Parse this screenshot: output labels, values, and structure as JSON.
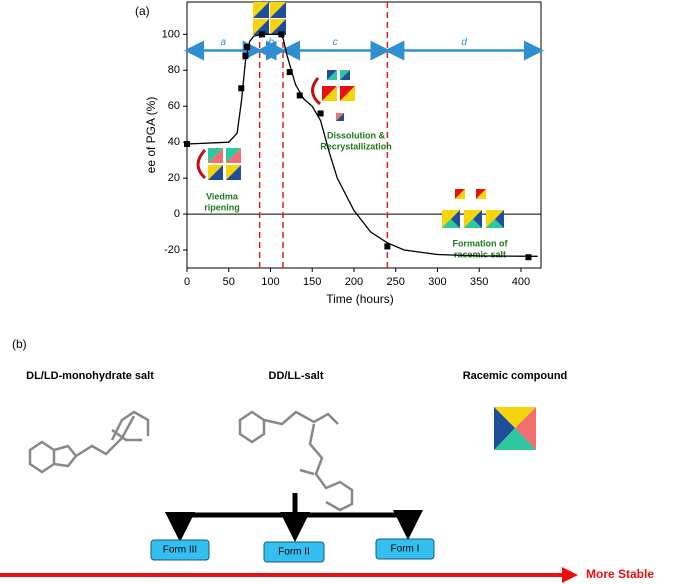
{
  "chart_data": {
    "type": "scatter",
    "panel_label": "(a)",
    "x_label": "Time (hours)",
    "y_label": "ee of PGA (%)",
    "xlim": [
      0,
      424
    ],
    "ylim": [
      -30,
      118
    ],
    "xticks": [
      0,
      50,
      100,
      150,
      200,
      250,
      300,
      350,
      400
    ],
    "yticks": [
      -20,
      0,
      20,
      40,
      60,
      80,
      100
    ],
    "series": [
      {
        "type": "scatter",
        "color": "#000000",
        "x": [
          0,
          65,
          70,
          72,
          90,
          113,
          123,
          135,
          160,
          240,
          409
        ],
        "values": [
          39,
          70,
          88,
          93,
          100,
          100,
          79,
          66,
          56,
          -18,
          -24
        ]
      },
      {
        "type": "line",
        "color": "#000000",
        "x": [
          0,
          50,
          60,
          65,
          70,
          75,
          80,
          90,
          100,
          110,
          115,
          120,
          130,
          140,
          150,
          160,
          170,
          180,
          200,
          220,
          240,
          260,
          300,
          350,
          420
        ],
        "values": [
          39,
          40,
          45,
          62,
          85,
          96,
          99,
          100,
          100,
          100,
          98,
          88,
          72,
          64,
          60,
          52,
          35,
          20,
          2,
          -10,
          -16,
          -20,
          -22.5,
          -23.3,
          -23.5
        ]
      }
    ],
    "phase_boundaries": [
      87,
      115,
      240
    ],
    "phase_arrow_y": 91,
    "phases": [
      "a",
      "b",
      "c",
      "d"
    ],
    "annotations": [
      {
        "lines": [
          "Viedma",
          "ripening"
        ]
      },
      {
        "lines": [
          "Dissolution &",
          "Recrystallization"
        ]
      },
      {
        "lines": [
          "Formation of",
          "racemic salt"
        ]
      }
    ]
  },
  "panel_b": {
    "label": "(b)",
    "structures": [
      "DL/LD-monohydrate salt",
      "DD/LL-salt",
      "Racemic compound"
    ],
    "forms": [
      "Form III",
      "Form II",
      "Form I"
    ],
    "arrow_label": "More Stable"
  }
}
